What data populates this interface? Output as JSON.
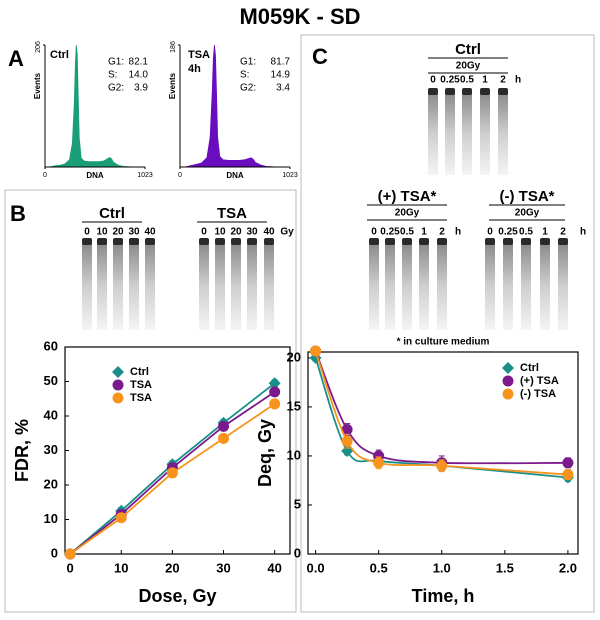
{
  "title": "M059K - SD",
  "panel_labels": [
    "A",
    "B",
    "C"
  ],
  "annotation": "* in culture medium",
  "chart_data": [
    {
      "type": "area",
      "label": [
        "Ctrl"
      ],
      "color": "#1a9e78",
      "x": [
        0,
        50,
        100,
        150,
        200,
        250,
        280,
        300,
        310,
        320,
        330,
        340,
        350,
        370,
        400,
        450,
        500,
        550,
        600,
        640,
        660,
        680,
        700,
        750,
        800,
        900,
        1023
      ],
      "values": [
        0,
        0,
        2,
        3,
        5,
        12,
        40,
        110,
        170,
        206,
        190,
        120,
        50,
        15,
        10,
        9,
        9,
        9,
        10,
        14,
        16,
        14,
        8,
        3,
        1,
        0,
        0
      ],
      "xlim": [
        0,
        1023
      ],
      "ylim": [
        0,
        206
      ],
      "xticks": [
        0,
        1023
      ],
      "yticks": [
        206
      ],
      "x_label": "DNA",
      "y_label": "Events",
      "stats": {
        "names": [
          "G1:",
          "S:",
          "G2:"
        ],
        "values": [
          82.1,
          14.0,
          3.9
        ],
        "value_labels": [
          "82.1",
          "14.0",
          "3.9"
        ]
      }
    },
    {
      "type": "area",
      "label": [
        "TSA",
        "4h"
      ],
      "color": "#6a0dbf",
      "x": [
        0,
        50,
        100,
        150,
        200,
        250,
        280,
        300,
        310,
        320,
        330,
        340,
        350,
        370,
        400,
        450,
        500,
        550,
        600,
        640,
        660,
        680,
        700,
        750,
        800,
        900,
        1023
      ],
      "values": [
        0,
        0,
        2,
        4,
        6,
        14,
        45,
        115,
        165,
        186,
        170,
        110,
        45,
        16,
        11,
        10,
        10,
        10,
        11,
        13,
        14,
        12,
        7,
        3,
        1,
        0,
        0
      ],
      "xlim": [
        0,
        1023
      ],
      "ylim": [
        0,
        186
      ],
      "xticks": [
        0,
        1023
      ],
      "yticks": [
        186
      ],
      "x_label": "DNA",
      "y_label": "Events",
      "stats": {
        "names": [
          "G1:",
          "S:",
          "G2:"
        ],
        "values": [
          81.7,
          14.9,
          3.4
        ],
        "value_labels": [
          "81.7",
          "14.9",
          "3.4"
        ]
      }
    },
    {
      "type": "line",
      "x_label": "Dose, Gy",
      "y_label": "FDR, %",
      "x": [
        0,
        10,
        20,
        30,
        40
      ],
      "series": [
        {
          "name": "Ctrl",
          "color": "#1a8f8a",
          "marker": "diamond",
          "values": [
            0,
            12.5,
            26,
            38,
            49.5
          ],
          "errors": [
            0.3,
            1,
            1,
            1,
            1
          ]
        },
        {
          "name": "TSA",
          "color": "#7b1a8c",
          "marker": "circle",
          "values": [
            0,
            11.5,
            25,
            37,
            47
          ],
          "errors": [
            0.3,
            1,
            1,
            1,
            1
          ]
        },
        {
          "name": "TSA",
          "color": "#f7941d",
          "marker": "circle",
          "values": [
            0,
            10.5,
            23.5,
            33.5,
            43.5
          ],
          "errors": [
            0.3,
            0.8,
            0.8,
            0.8,
            1
          ]
        }
      ],
      "xlim": [
        -1,
        43
      ],
      "ylim": [
        0,
        60
      ],
      "xticks": [
        0,
        10,
        20,
        30,
        40
      ],
      "yticks": [
        0,
        10,
        20,
        30,
        40,
        50,
        60
      ],
      "smooth": false
    },
    {
      "type": "line",
      "x_label": "Time, h",
      "y_label": "Deq, Gy",
      "x": [
        0,
        0.25,
        0.5,
        1,
        2
      ],
      "series": [
        {
          "name": "Ctrl",
          "color": "#1a8f8a",
          "marker": "diamond",
          "values": [
            20,
            10.5,
            9.5,
            9,
            7.8
          ],
          "errors": [
            0.3,
            0.4,
            0.5,
            0.5,
            0.4
          ]
        },
        {
          "name": "(+) TSA",
          "color": "#7b1a8c",
          "marker": "circle",
          "values": [
            20.7,
            12.7,
            10,
            9.3,
            9.3
          ],
          "errors": [
            0.3,
            0.6,
            0.6,
            0.7,
            0.5
          ]
        },
        {
          "name": "(-)  TSA",
          "color": "#f7941d",
          "marker": "circle",
          "values": [
            20.7,
            11.5,
            9.3,
            9,
            8.1
          ],
          "errors": [
            0.3,
            0.7,
            0.6,
            0.6,
            0.5
          ]
        }
      ],
      "xlim": [
        -0.06,
        2.08
      ],
      "ylim": [
        0,
        20.6
      ],
      "xticks": [
        {
          "value": 0,
          "label": "0.0"
        },
        {
          "value": 0.5,
          "label": "0.5"
        },
        {
          "value": 1,
          "label": "1.0"
        },
        {
          "value": 1.5,
          "label": "1.5"
        },
        {
          "value": 2,
          "label": "2.0"
        }
      ],
      "yticks": [
        0,
        5,
        10,
        15,
        20
      ],
      "smooth": true
    }
  ],
  "gels": [
    {
      "title": "Ctrl",
      "lanes": [
        "0",
        "10",
        "20",
        "30",
        "40"
      ]
    },
    {
      "title": "TSA",
      "lanes": [
        "0",
        "10",
        "20",
        "30",
        "40"
      ],
      "unit": "Gy"
    },
    {
      "title": "Ctrl",
      "dose": "20Gy",
      "lanes": [
        "0",
        "0.25",
        "0.5",
        "1",
        "2"
      ],
      "unit": "h"
    },
    {
      "title": "(+) TSA*",
      "dose": "20Gy",
      "lanes": [
        "0",
        "0.25",
        "0.5",
        "1",
        "2"
      ],
      "unit": "h"
    },
    {
      "title": "(-) TSA*",
      "dose": "20Gy",
      "lanes": [
        "0",
        "0.25",
        "0.5",
        "1",
        "2"
      ],
      "unit": "h"
    }
  ]
}
